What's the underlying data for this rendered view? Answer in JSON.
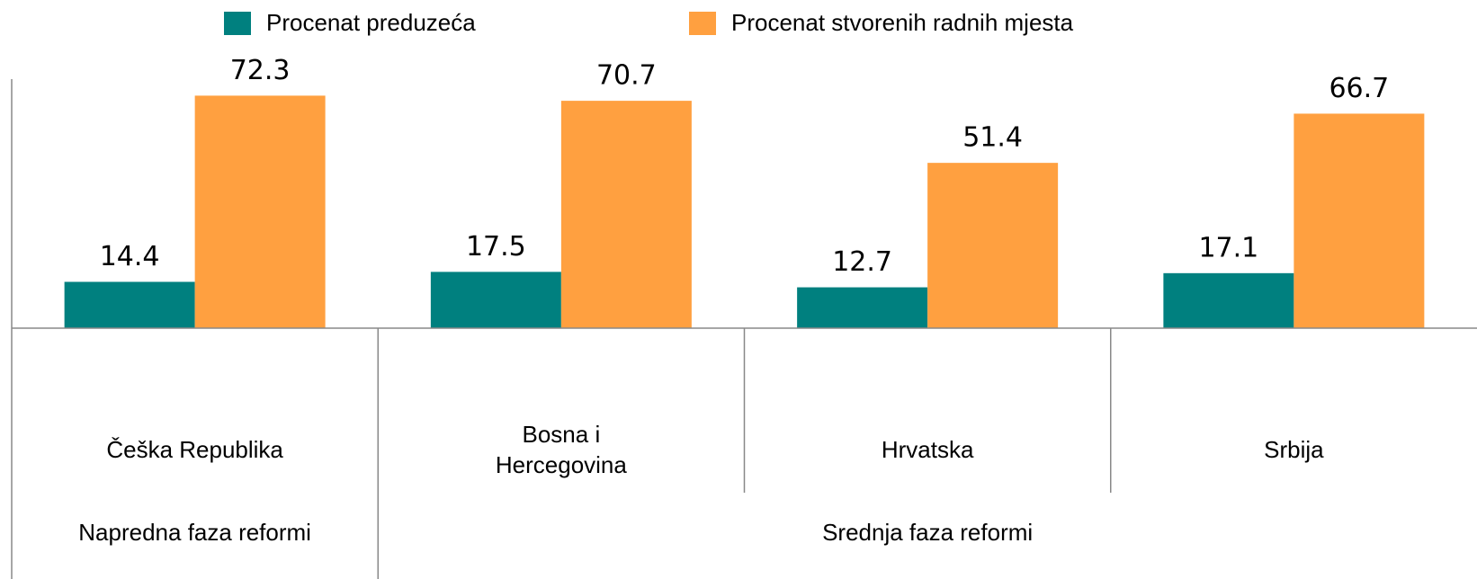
{
  "chart_data": {
    "type": "bar",
    "categories": [
      "Češka Republika",
      "Bosna i Hercegovina",
      "Hrvatska",
      "Srbija"
    ],
    "category_groups": [
      {
        "name": "Napredna faza reformi",
        "span": 1
      },
      {
        "name": "Srednja faza reformi",
        "span": 3
      }
    ],
    "series": [
      {
        "name": "Procenat preduzeća",
        "color": "#00807f",
        "values": [
          14.4,
          17.5,
          12.7,
          17.1
        ]
      },
      {
        "name": "Procenat stvorenih radnih mjesta",
        "color": "#ffa040",
        "values": [
          72.3,
          70.7,
          51.4,
          66.7
        ]
      }
    ],
    "ylim": [
      0,
      78
    ],
    "legend": "top"
  }
}
